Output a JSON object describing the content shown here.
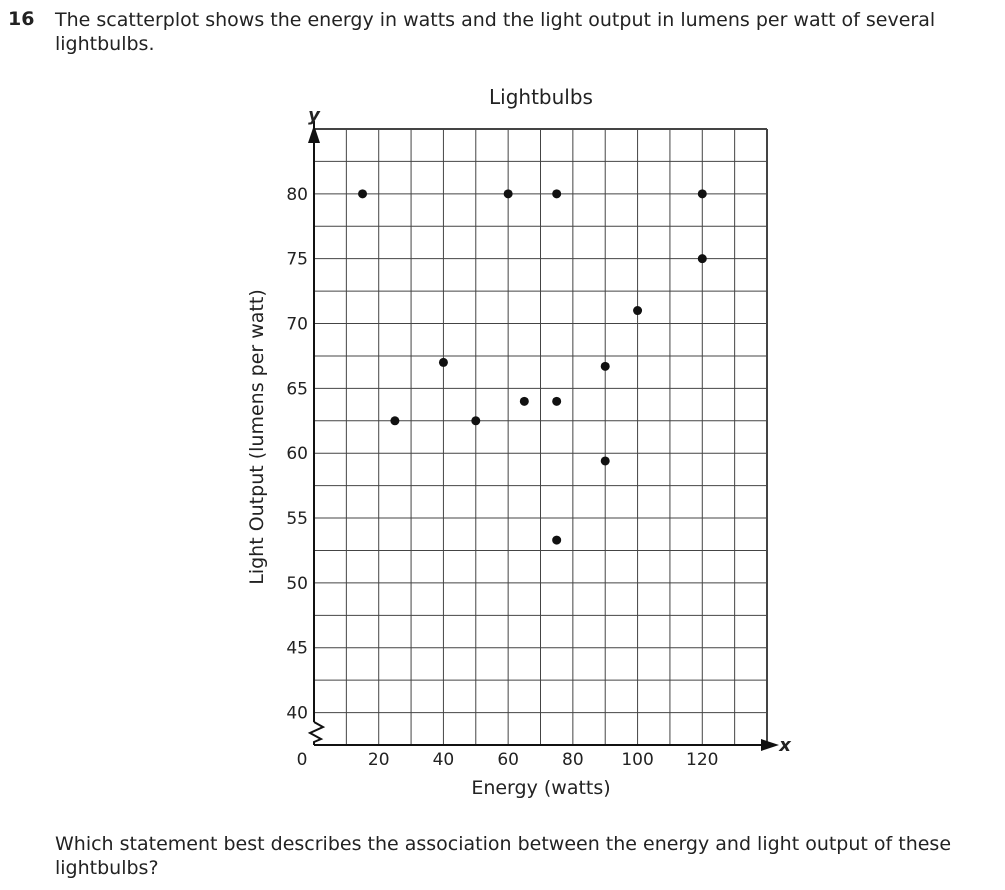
{
  "question": {
    "number": "16",
    "prompt": "The scatterplot shows the energy in watts and the light output in lumens per watt of several lightbulbs.",
    "followup": "Which statement best describes the association between the energy and light output of these lightbulbs?"
  },
  "chart_data": {
    "type": "scatter",
    "title": "Lightbulbs",
    "xlabel": "Energy (watts)",
    "ylabel": "Light Output (lumens per watt)",
    "x_axis_letter": "x",
    "y_axis_letter": "y",
    "origin_label": "0",
    "xlim": [
      0,
      140
    ],
    "ylim": [
      37.5,
      85
    ],
    "y_axis_break": true,
    "grid": true,
    "x_ticks": [
      20,
      40,
      60,
      80,
      100,
      120
    ],
    "y_ticks": [
      40,
      45,
      50,
      55,
      60,
      65,
      70,
      75,
      80
    ],
    "points": [
      {
        "x": 15,
        "y": 80
      },
      {
        "x": 25,
        "y": 62.5
      },
      {
        "x": 40,
        "y": 67
      },
      {
        "x": 50,
        "y": 62.5
      },
      {
        "x": 60,
        "y": 80
      },
      {
        "x": 65,
        "y": 64
      },
      {
        "x": 75,
        "y": 80
      },
      {
        "x": 75,
        "y": 64
      },
      {
        "x": 75,
        "y": 53.3
      },
      {
        "x": 90,
        "y": 66.7
      },
      {
        "x": 90,
        "y": 59.4
      },
      {
        "x": 100,
        "y": 71
      },
      {
        "x": 120,
        "y": 80
      },
      {
        "x": 120,
        "y": 75
      }
    ]
  }
}
